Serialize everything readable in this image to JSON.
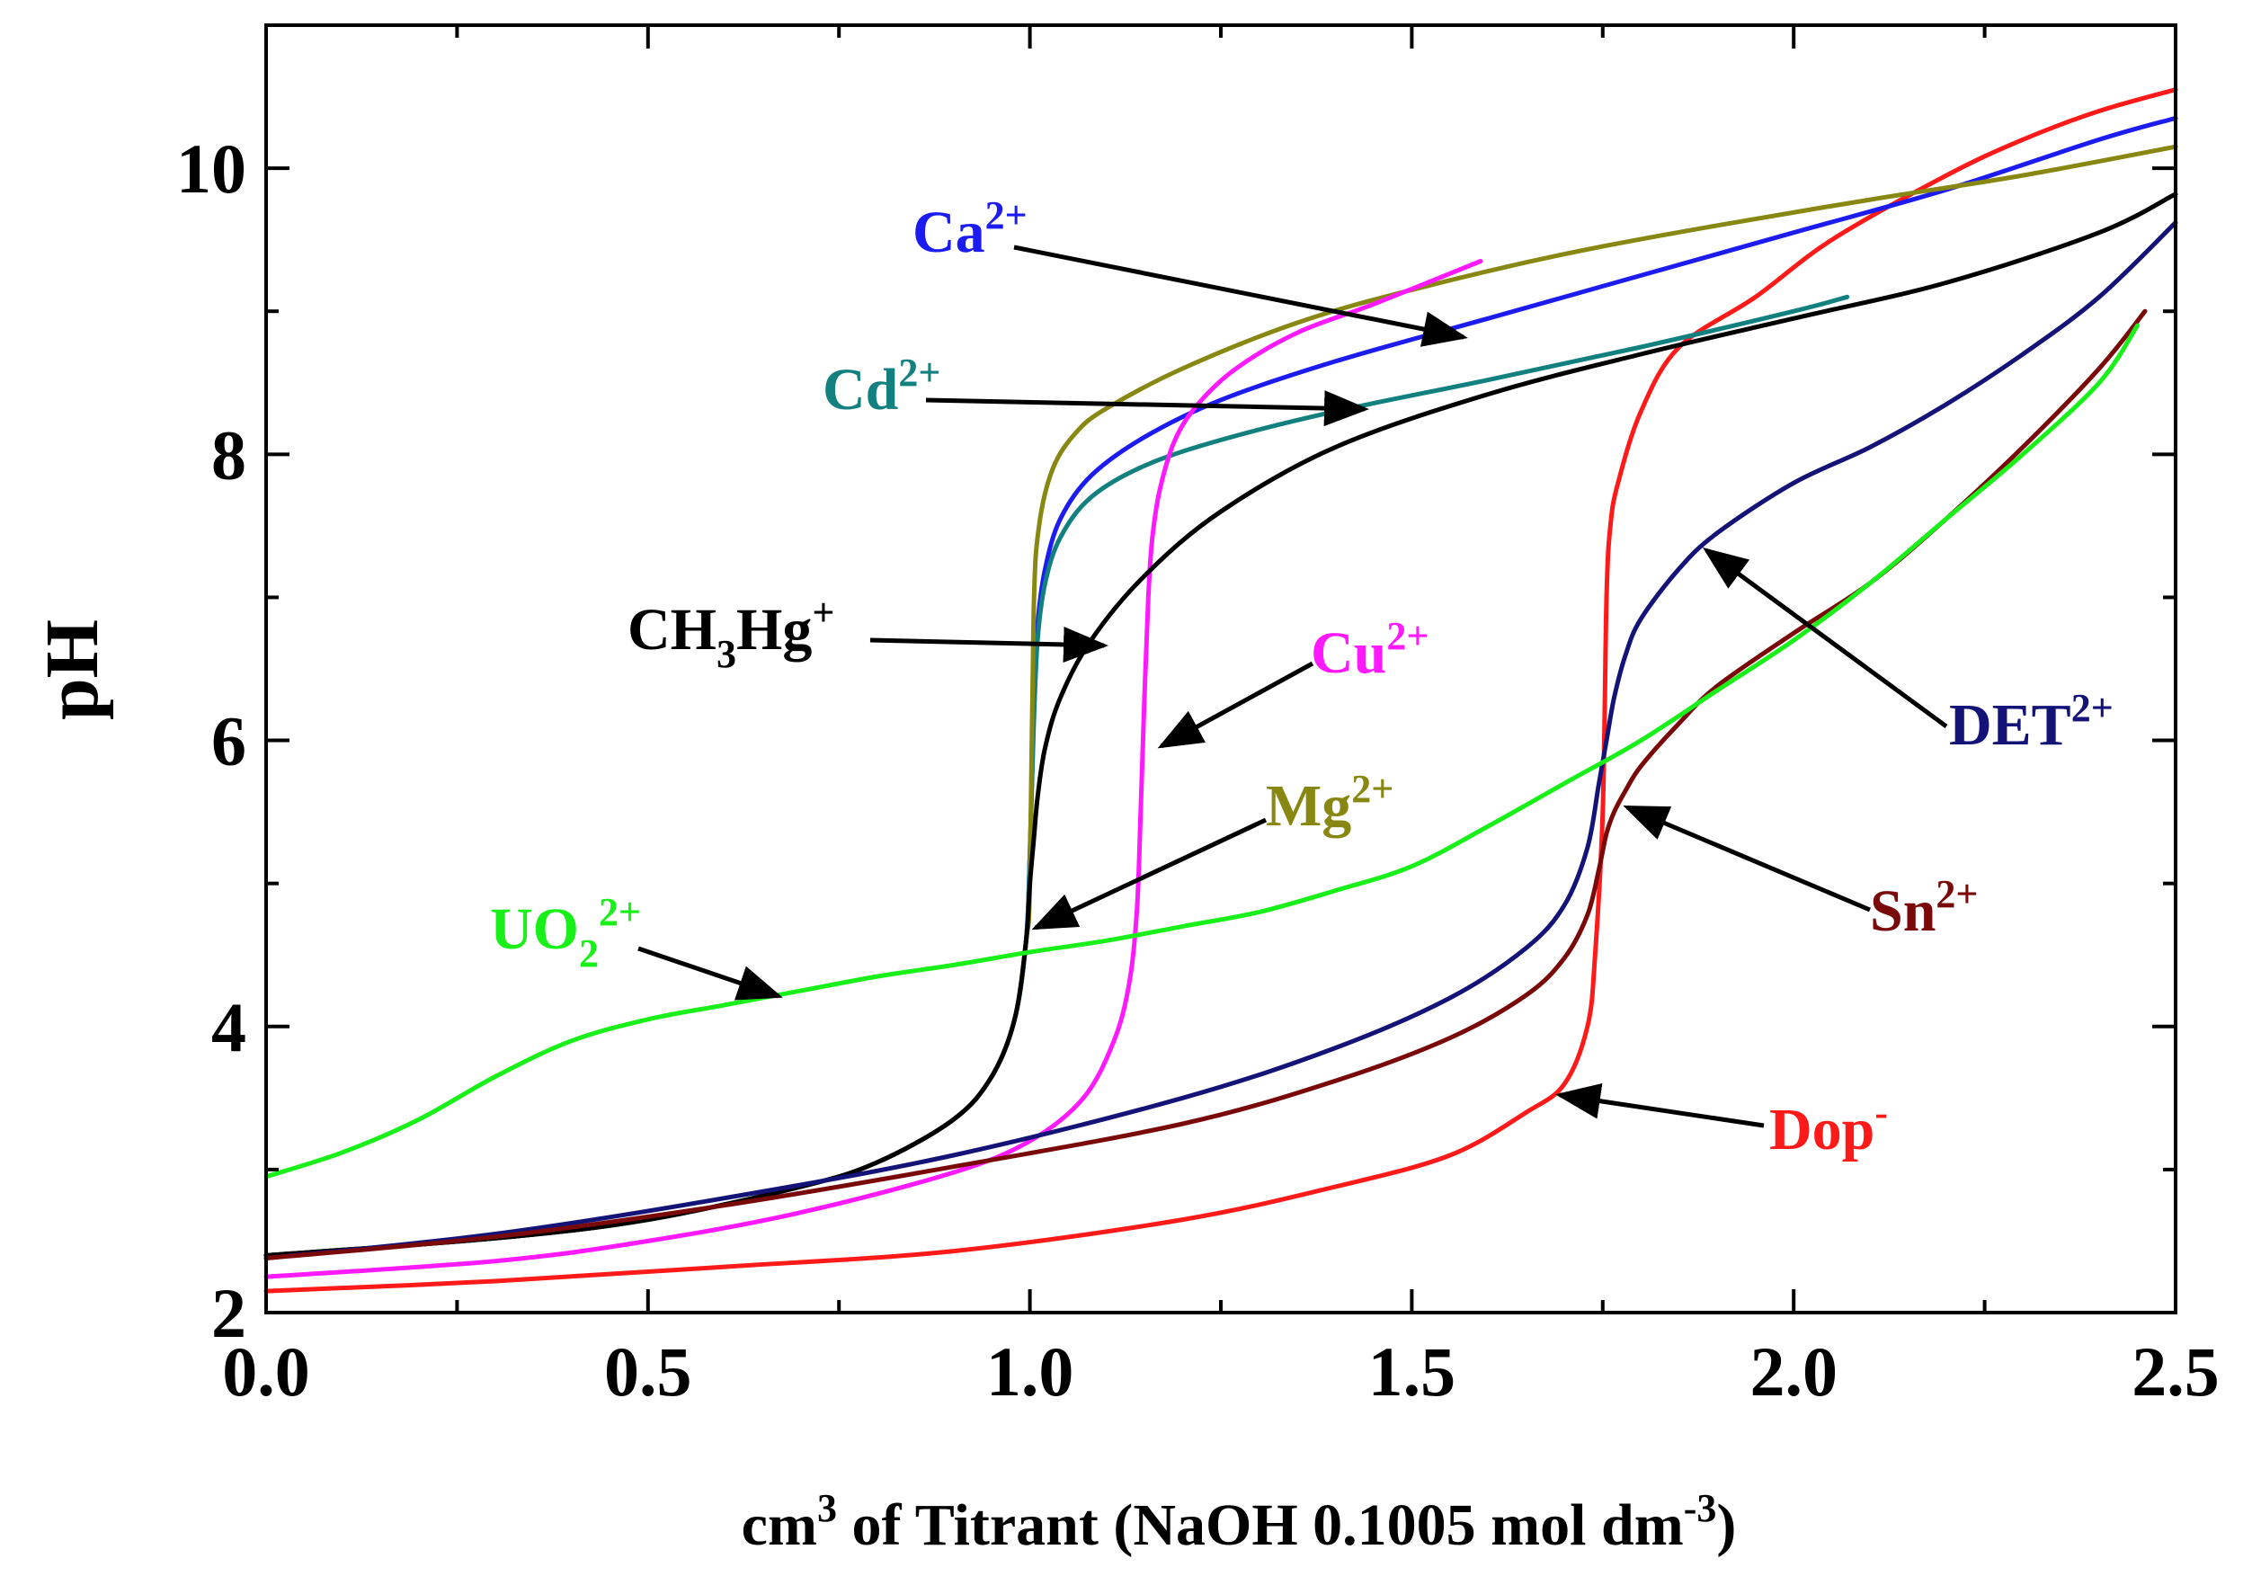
{
  "chart_data": {
    "type": "line",
    "title": "",
    "xlabel": {
      "main": "cm",
      "sup1": "3",
      "mid": " of Titrant (NaOH 0.1005 mol dm",
      "sup2": "-3",
      "end": ")"
    },
    "ylabel": "pH",
    "xlim": [
      0.0,
      2.5
    ],
    "ylim": [
      2,
      11
    ],
    "x_ticks": [
      0.0,
      0.5,
      1.0,
      1.5,
      2.0,
      2.5
    ],
    "x_tick_labels": [
      "0.0",
      "0.5",
      "1.0",
      "1.5",
      "2.0",
      "2.5"
    ],
    "y_ticks": [
      2,
      4,
      6,
      8,
      10
    ],
    "y_tick_labels": [
      "2",
      "4",
      "6",
      "8",
      "10"
    ],
    "grid": false,
    "series": [
      {
        "name": "Dop-",
        "color": "#ff1a1a",
        "x": [
          0.0,
          0.3,
          0.6,
          0.9,
          1.2,
          1.4,
          1.55,
          1.65,
          1.7,
          1.73,
          1.74,
          1.75,
          1.755,
          1.76,
          1.77,
          1.8,
          1.85,
          1.95,
          2.05,
          2.2,
          2.3,
          2.4,
          2.5
        ],
        "y": [
          2.15,
          2.22,
          2.32,
          2.43,
          2.65,
          2.88,
          3.1,
          3.4,
          3.6,
          4.0,
          4.5,
          5.5,
          7.0,
          7.5,
          7.8,
          8.3,
          8.75,
          9.1,
          9.5,
          9.95,
          10.2,
          10.4,
          10.55
        ]
      },
      {
        "name": "Ca2+",
        "color": "#1c1cf0",
        "x": [
          0.0,
          0.3,
          0.5,
          0.7,
          0.8,
          0.9,
          0.95,
          0.98,
          0.995,
          1.0,
          1.005,
          1.01,
          1.02,
          1.04,
          1.08,
          1.15,
          1.25,
          1.4,
          1.6,
          1.8,
          2.0,
          2.2,
          2.4,
          2.5
        ],
        "y": [
          2.4,
          2.52,
          2.65,
          2.88,
          3.05,
          3.35,
          3.65,
          4.05,
          4.6,
          5.2,
          6.2,
          6.8,
          7.2,
          7.55,
          7.85,
          8.12,
          8.38,
          8.65,
          8.95,
          9.25,
          9.55,
          9.85,
          10.2,
          10.35
        ]
      },
      {
        "name": "Cd2+",
        "color": "#138080",
        "x": [
          0.0,
          0.3,
          0.5,
          0.7,
          0.8,
          0.9,
          0.95,
          0.98,
          0.995,
          1.0,
          1.005,
          1.01,
          1.02,
          1.04,
          1.08,
          1.15,
          1.25,
          1.4,
          1.6,
          1.8,
          2.0,
          2.07
        ],
        "y": [
          2.4,
          2.52,
          2.65,
          2.88,
          3.05,
          3.35,
          3.65,
          4.05,
          4.6,
          5.2,
          6.1,
          6.7,
          7.1,
          7.42,
          7.7,
          7.92,
          8.1,
          8.3,
          8.52,
          8.75,
          9.0,
          9.1
        ]
      },
      {
        "name": "Mg2+",
        "color": "#878712",
        "x": [
          0.0,
          0.3,
          0.5,
          0.7,
          0.8,
          0.9,
          0.95,
          0.98,
          0.995,
          1.0,
          1.005,
          1.012,
          1.03,
          1.06,
          1.1,
          1.2,
          1.35,
          1.5,
          1.7,
          1.9,
          2.1,
          2.3,
          2.5
        ],
        "y": [
          2.4,
          2.52,
          2.65,
          2.88,
          3.05,
          3.35,
          3.65,
          4.05,
          4.6,
          5.0,
          6.9,
          7.5,
          7.9,
          8.15,
          8.32,
          8.6,
          8.92,
          9.15,
          9.4,
          9.6,
          9.78,
          9.95,
          10.15
        ]
      },
      {
        "name": "Cu2+",
        "color": "#ff19ff",
        "x": [
          0.0,
          0.3,
          0.5,
          0.7,
          0.9,
          1.0,
          1.07,
          1.11,
          1.13,
          1.14,
          1.145,
          1.15,
          1.155,
          1.16,
          1.17,
          1.19,
          1.22,
          1.27,
          1.35,
          1.45,
          1.59
        ],
        "y": [
          2.25,
          2.36,
          2.5,
          2.7,
          2.98,
          3.2,
          3.5,
          3.9,
          4.3,
          4.8,
          5.5,
          6.3,
          7.0,
          7.4,
          7.75,
          8.1,
          8.35,
          8.6,
          8.85,
          9.05,
          9.35
        ]
      },
      {
        "name": "CH3Hg+",
        "color": "#000000",
        "x": [
          0.0,
          0.3,
          0.5,
          0.7,
          0.8,
          0.9,
          0.95,
          0.98,
          0.995,
          1.0,
          1.005,
          1.01,
          1.02,
          1.04,
          1.08,
          1.15,
          1.25,
          1.4,
          1.6,
          1.8,
          2.0,
          2.2,
          2.4,
          2.5
        ],
        "y": [
          2.4,
          2.52,
          2.65,
          2.88,
          3.05,
          3.35,
          3.65,
          4.05,
          4.6,
          5.0,
          5.3,
          5.6,
          5.95,
          6.3,
          6.7,
          7.15,
          7.6,
          8.05,
          8.42,
          8.7,
          8.95,
          9.2,
          9.55,
          9.82
        ]
      },
      {
        "name": "DET2+",
        "color": "#141478",
        "x": [
          0.0,
          0.3,
          0.6,
          0.9,
          1.2,
          1.4,
          1.55,
          1.65,
          1.7,
          1.73,
          1.745,
          1.755,
          1.765,
          1.78,
          1.8,
          1.85,
          1.9,
          2.0,
          2.1,
          2.2,
          2.3,
          2.4,
          2.5
        ],
        "y": [
          2.38,
          2.55,
          2.8,
          3.1,
          3.5,
          3.85,
          4.2,
          4.55,
          4.85,
          5.25,
          5.7,
          6.0,
          6.3,
          6.6,
          6.85,
          7.2,
          7.45,
          7.8,
          8.05,
          8.35,
          8.7,
          9.1,
          9.62
        ]
      },
      {
        "name": "Sn2+",
        "color": "#7a0a0a",
        "x": [
          0.0,
          0.3,
          0.6,
          0.9,
          1.2,
          1.4,
          1.55,
          1.65,
          1.7,
          1.73,
          1.745,
          1.755,
          1.765,
          1.78,
          1.8,
          1.85,
          1.9,
          2.0,
          2.1,
          2.2,
          2.3,
          2.4,
          2.46
        ],
        "y": [
          2.38,
          2.53,
          2.75,
          3.02,
          3.32,
          3.62,
          3.92,
          4.22,
          4.48,
          4.78,
          5.1,
          5.35,
          5.5,
          5.65,
          5.82,
          6.12,
          6.38,
          6.75,
          7.1,
          7.55,
          8.05,
          8.6,
          9.0
        ]
      },
      {
        "name": "UO22+",
        "color": "#19f019",
        "x": [
          0.0,
          0.1,
          0.2,
          0.3,
          0.4,
          0.5,
          0.6,
          0.7,
          0.8,
          0.9,
          1.0,
          1.1,
          1.2,
          1.3,
          1.4,
          1.5,
          1.6,
          1.7,
          1.8,
          1.9,
          2.0,
          2.1,
          2.2,
          2.3,
          2.4,
          2.45
        ],
        "y": [
          2.95,
          3.12,
          3.35,
          3.65,
          3.9,
          4.05,
          4.15,
          4.25,
          4.35,
          4.43,
          4.52,
          4.6,
          4.7,
          4.8,
          4.95,
          5.12,
          5.4,
          5.7,
          6.0,
          6.35,
          6.7,
          7.1,
          7.55,
          8.0,
          8.5,
          8.9
        ]
      }
    ],
    "annotations": [
      {
        "key": "ca",
        "main": "Ca",
        "sup": "2+",
        "color": "#1c1cf0"
      },
      {
        "key": "cd",
        "main": "Cd",
        "sup": "2+",
        "color": "#138080"
      },
      {
        "key": "hg",
        "main": "CH",
        "sub": "3",
        "main2": "Hg",
        "sup": "+",
        "color": "#000000"
      },
      {
        "key": "cu",
        "main": "Cu",
        "sup": "2+",
        "color": "#ff19ff"
      },
      {
        "key": "mg",
        "main": "Mg",
        "sup": "2+",
        "color": "#878712"
      },
      {
        "key": "uo",
        "main": "UO",
        "sub": "2",
        "sup": "2+",
        "color": "#19f019"
      },
      {
        "key": "det",
        "main": "DET",
        "sup": "2+",
        "color": "#141478"
      },
      {
        "key": "sn",
        "main": "Sn",
        "sup": "2+",
        "color": "#7a0a0a"
      },
      {
        "key": "dop",
        "main": "Dop",
        "sup": "-",
        "color": "#ff1a1a"
      }
    ]
  }
}
